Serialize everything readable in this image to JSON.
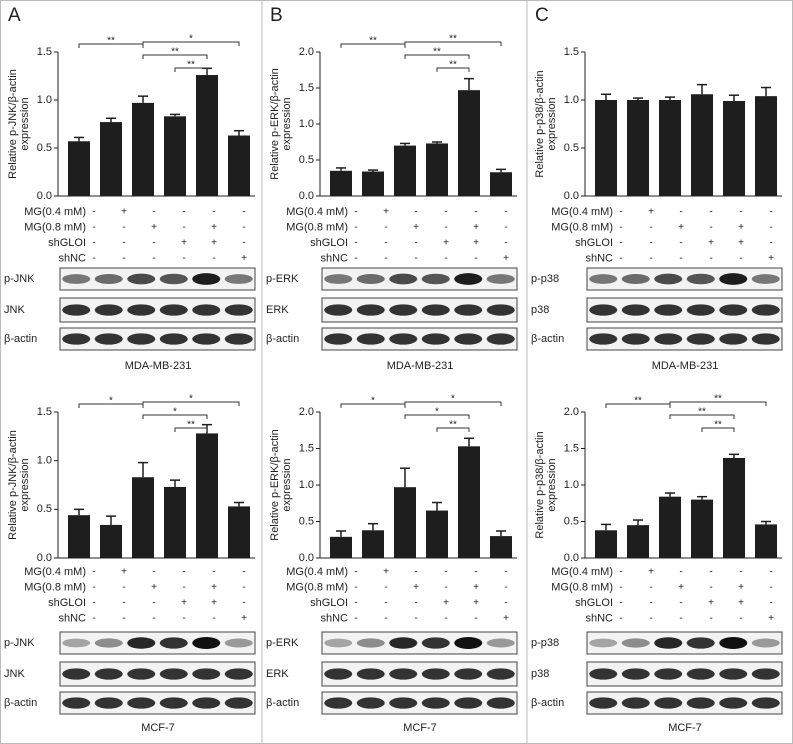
{
  "panel_labels": [
    "A",
    "B",
    "C"
  ],
  "chart_data": [
    {
      "type": "bar",
      "ylabel": [
        "Relative p-JNK/β-actin",
        "expression"
      ],
      "categories": [
        null,
        null,
        null,
        null,
        null,
        null
      ],
      "series": [
        {
          "color": "#1e1e1e",
          "values": [
            0.57,
            0.77,
            0.97,
            0.83,
            1.26,
            0.63
          ],
          "errors": [
            0.04,
            0.04,
            0.07,
            0.02,
            0.07,
            0.05
          ]
        }
      ],
      "ylim": [
        0,
        1.5
      ],
      "yticks": [
        {
          "value": 0,
          "label": "0.0"
        },
        0.5,
        {
          "value": 1,
          "label": "1.0"
        },
        1.5
      ],
      "comparisons": [
        {
          "groups": [
            0,
            2
          ],
          "label": "**"
        },
        {
          "groups": [
            2,
            5
          ],
          "label": "*"
        },
        {
          "groups": [
            2,
            4
          ],
          "label": "**"
        },
        {
          "groups": [
            3,
            4
          ],
          "label": "**"
        }
      ],
      "treatments": [
        {
          "label": "MG(0.4 mM)",
          "marks": [
            "-",
            "+",
            "-",
            "-",
            "-",
            "-"
          ]
        },
        {
          "label": "MG(0.8 mM)",
          "marks": [
            "-",
            "-",
            "+",
            "-",
            "+",
            "-"
          ]
        },
        {
          "label": "shGLOI",
          "marks": [
            "-",
            "-",
            "-",
            "+",
            "+",
            "-"
          ]
        },
        {
          "label": "shNC",
          "marks": [
            "-",
            "-",
            "-",
            "-",
            "-",
            "+"
          ]
        }
      ],
      "blots": [
        "p-JNK",
        "JNK",
        "β-actin"
      ],
      "cell_line": "MDA-MB-231"
    },
    {
      "type": "bar",
      "ylabel": [
        "Relative p-JNK/β-actin",
        "expression"
      ],
      "categories": [
        null,
        null,
        null,
        null,
        null,
        null
      ],
      "series": [
        {
          "color": "#1e1e1e",
          "values": [
            0.44,
            0.34,
            0.83,
            0.73,
            1.28,
            0.53
          ],
          "errors": [
            0.06,
            0.09,
            0.15,
            0.07,
            0.09,
            0.04
          ]
        }
      ],
      "ylim": [
        0,
        1.5
      ],
      "yticks": [
        {
          "value": 0,
          "label": "0.0"
        },
        0.5,
        {
          "value": 1,
          "label": "1.0"
        },
        1.5
      ],
      "comparisons": [
        {
          "groups": [
            0,
            2
          ],
          "label": "*"
        },
        {
          "groups": [
            2,
            5
          ],
          "label": "*"
        },
        {
          "groups": [
            2,
            4
          ],
          "label": "*"
        },
        {
          "groups": [
            3,
            4
          ],
          "label": "**"
        }
      ],
      "treatments": [
        {
          "label": "MG(0.4 mM)",
          "marks": [
            "-",
            "+",
            "-",
            "-",
            "-",
            "-"
          ]
        },
        {
          "label": "MG(0.8 mM)",
          "marks": [
            "-",
            "-",
            "+",
            "-",
            "+",
            "-"
          ]
        },
        {
          "label": "shGLOI",
          "marks": [
            "-",
            "-",
            "-",
            "+",
            "+",
            "-"
          ]
        },
        {
          "label": "shNC",
          "marks": [
            "-",
            "-",
            "-",
            "-",
            "-",
            "+"
          ]
        }
      ],
      "blots": [
        "p-JNK",
        "JNK",
        "β-actin"
      ],
      "cell_line": "MCF-7"
    },
    {
      "type": "bar",
      "ylabel": [
        "Relative p-ERK/β-actin",
        "expression"
      ],
      "categories": [
        null,
        null,
        null,
        null,
        null,
        null
      ],
      "series": [
        {
          "color": "#1e1e1e",
          "values": [
            0.35,
            0.34,
            0.7,
            0.73,
            1.47,
            0.33
          ],
          "errors": [
            0.04,
            0.02,
            0.03,
            0.02,
            0.16,
            0.04
          ]
        }
      ],
      "ylim": [
        0,
        2
      ],
      "yticks": [
        {
          "value": 0,
          "label": "0.0"
        },
        0.5,
        {
          "value": 1,
          "label": "1.0"
        },
        1.5,
        {
          "value": 2,
          "label": "2.0"
        }
      ],
      "comparisons": [
        {
          "groups": [
            0,
            2
          ],
          "label": "**"
        },
        {
          "groups": [
            2,
            5
          ],
          "label": "**"
        },
        {
          "groups": [
            2,
            4
          ],
          "label": "**"
        },
        {
          "groups": [
            3,
            4
          ],
          "label": "**"
        }
      ],
      "treatments": [
        {
          "label": "MG(0.4 mM)",
          "marks": [
            "-",
            "+",
            "-",
            "-",
            "-",
            "-"
          ]
        },
        {
          "label": "MG(0.8 mM)",
          "marks": [
            "-",
            "-",
            "+",
            "-",
            "+",
            "-"
          ]
        },
        {
          "label": "shGLOI",
          "marks": [
            "-",
            "-",
            "-",
            "+",
            "+",
            "-"
          ]
        },
        {
          "label": "shNC",
          "marks": [
            "-",
            "-",
            "-",
            "-",
            "-",
            "+"
          ]
        }
      ],
      "blots": [
        "p-ERK",
        "ERK",
        "β-actin"
      ],
      "cell_line": "MDA-MB-231"
    },
    {
      "type": "bar",
      "ylabel": [
        "Relative p-ERK/β-actin",
        "expression"
      ],
      "categories": [
        null,
        null,
        null,
        null,
        null,
        null
      ],
      "series": [
        {
          "color": "#1e1e1e",
          "values": [
            0.29,
            0.38,
            0.97,
            0.65,
            1.53,
            0.3
          ],
          "errors": [
            0.08,
            0.09,
            0.26,
            0.11,
            0.11,
            0.07
          ]
        }
      ],
      "ylim": [
        0,
        2
      ],
      "yticks": [
        {
          "value": 0,
          "label": "0.0"
        },
        0.5,
        {
          "value": 1,
          "label": "1.0"
        },
        1.5,
        {
          "value": 2,
          "label": "2.0"
        }
      ],
      "comparisons": [
        {
          "groups": [
            0,
            2
          ],
          "label": "*"
        },
        {
          "groups": [
            2,
            5
          ],
          "label": "*"
        },
        {
          "groups": [
            2,
            4
          ],
          "label": "*"
        },
        {
          "groups": [
            3,
            4
          ],
          "label": "**"
        }
      ],
      "treatments": [
        {
          "label": "MG(0.4 mM)",
          "marks": [
            "-",
            "+",
            "-",
            "-",
            "-",
            "-"
          ]
        },
        {
          "label": "MG(0.8 mM)",
          "marks": [
            "-",
            "-",
            "+",
            "-",
            "+",
            "-"
          ]
        },
        {
          "label": "shGLOI",
          "marks": [
            "-",
            "-",
            "-",
            "+",
            "+",
            "-"
          ]
        },
        {
          "label": "shNC",
          "marks": [
            "-",
            "-",
            "-",
            "-",
            "-",
            "+"
          ]
        }
      ],
      "blots": [
        "p-ERK",
        "ERK",
        "β-actin"
      ],
      "cell_line": "MCF-7"
    },
    {
      "type": "bar",
      "ylabel": [
        "Relative p-p38/β-actin",
        "expression"
      ],
      "categories": [
        null,
        null,
        null,
        null,
        null,
        null
      ],
      "series": [
        {
          "color": "#1e1e1e",
          "values": [
            1.0,
            1.0,
            1.0,
            1.06,
            0.99,
            1.04
          ],
          "errors": [
            0.06,
            0.02,
            0.03,
            0.1,
            0.06,
            0.09
          ]
        }
      ],
      "ylim": [
        0,
        1.5
      ],
      "yticks": [
        {
          "value": 0,
          "label": "0.0"
        },
        0.5,
        {
          "value": 1,
          "label": "1.0"
        },
        1.5
      ],
      "comparisons": [],
      "treatments": [
        {
          "label": "MG(0.4 mM)",
          "marks": [
            "-",
            "+",
            "-",
            "-",
            "-",
            "-"
          ]
        },
        {
          "label": "MG(0.8 mM)",
          "marks": [
            "-",
            "-",
            "+",
            "-",
            "+",
            "-"
          ]
        },
        {
          "label": "shGLOI",
          "marks": [
            "-",
            "-",
            "-",
            "+",
            "+",
            "-"
          ]
        },
        {
          "label": "shNC",
          "marks": [
            "-",
            "-",
            "-",
            "-",
            "-",
            "+"
          ]
        }
      ],
      "blots": [
        "p-p38",
        "p38",
        "β-actin"
      ],
      "cell_line": "MDA-MB-231"
    },
    {
      "type": "bar",
      "ylabel": [
        "Relative p-p38/β-actin",
        "expression"
      ],
      "categories": [
        null,
        null,
        null,
        null,
        null,
        null
      ],
      "series": [
        {
          "color": "#1e1e1e",
          "values": [
            0.38,
            0.45,
            0.84,
            0.8,
            1.37,
            0.46
          ],
          "errors": [
            0.08,
            0.07,
            0.05,
            0.04,
            0.05,
            0.04
          ]
        }
      ],
      "ylim": [
        0,
        2
      ],
      "yticks": [
        {
          "value": 0,
          "label": "0.0"
        },
        0.5,
        {
          "value": 1,
          "label": "1.0"
        },
        1.5,
        {
          "value": 2,
          "label": "2.0"
        }
      ],
      "comparisons": [
        {
          "groups": [
            0,
            2
          ],
          "label": "**"
        },
        {
          "groups": [
            2,
            5
          ],
          "label": "**"
        },
        {
          "groups": [
            2,
            4
          ],
          "label": "**"
        },
        {
          "groups": [
            3,
            4
          ],
          "label": "**"
        }
      ],
      "treatments": [
        {
          "label": "MG(0.4 mM)",
          "marks": [
            "-",
            "+",
            "-",
            "-",
            "-",
            "-"
          ]
        },
        {
          "label": "MG(0.8 mM)",
          "marks": [
            "-",
            "-",
            "+",
            "-",
            "+",
            "-"
          ]
        },
        {
          "label": "shGLOI",
          "marks": [
            "-",
            "-",
            "-",
            "+",
            "+",
            "-"
          ]
        },
        {
          "label": "shNC",
          "marks": [
            "-",
            "-",
            "-",
            "-",
            "-",
            "+"
          ]
        }
      ],
      "blots": [
        "p-p38",
        "p38",
        "β-actin"
      ],
      "cell_line": "MCF-7"
    }
  ]
}
